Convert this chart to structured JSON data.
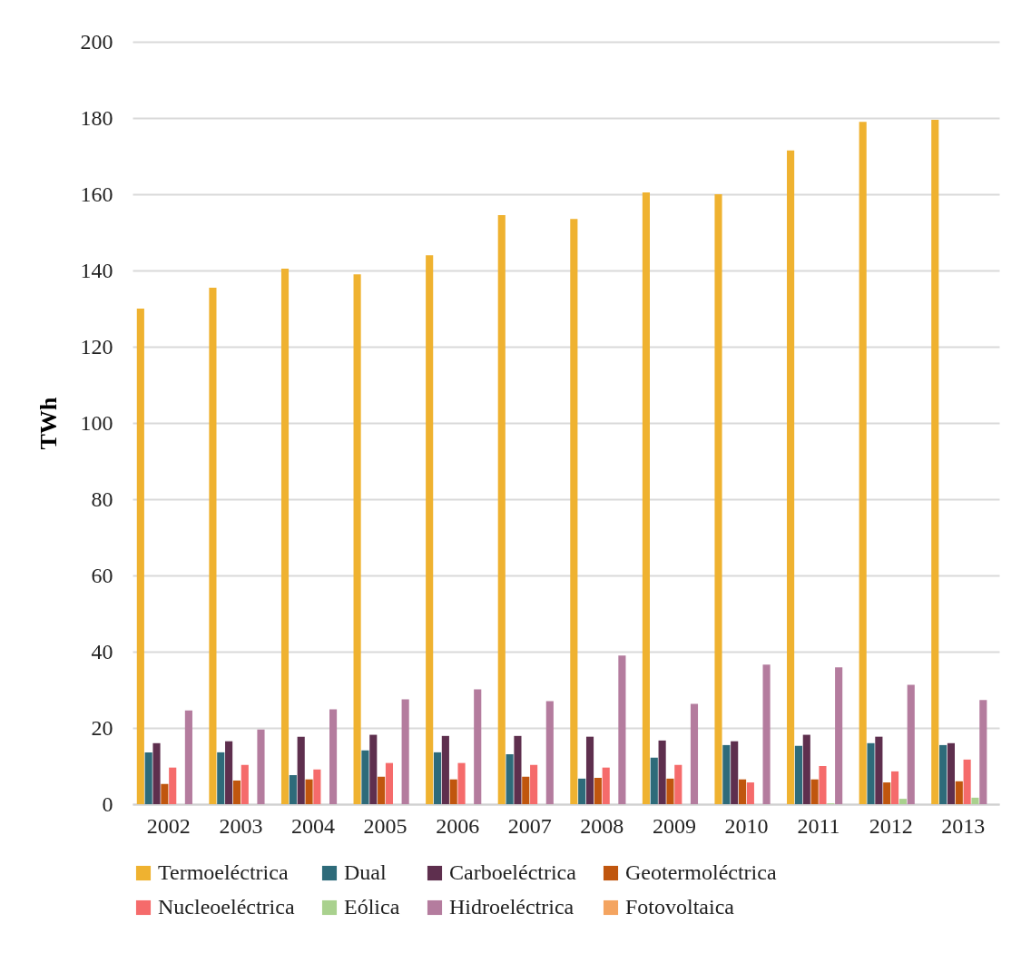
{
  "chart_data": {
    "type": "bar",
    "ylabel": "TWh",
    "categories": [
      "2002",
      "2003",
      "2004",
      "2005",
      "2006",
      "2007",
      "2008",
      "2009",
      "2010",
      "2011",
      "2012",
      "2013"
    ],
    "series": [
      {
        "name": "Termoeléctrica",
        "color": "#efb230",
        "values": [
          130,
          135.5,
          140.5,
          139,
          144,
          154.5,
          153.5,
          160.5,
          160,
          171.5,
          179,
          179.5
        ]
      },
      {
        "name": "Dual",
        "color": "#2e6b7a",
        "values": [
          13.6,
          13.6,
          7.6,
          14.1,
          13.6,
          13.1,
          6.7,
          12.2,
          15.5,
          15.3,
          16,
          15.5
        ]
      },
      {
        "name": "Carboeléctrica",
        "color": "#5e2f4e",
        "values": [
          16,
          16.5,
          17.7,
          18.2,
          17.9,
          17.9,
          17.7,
          16.7,
          16.5,
          18.2,
          17.7,
          16
        ]
      },
      {
        "name": "Geotermoléctrica",
        "color": "#c0560e",
        "values": [
          5.3,
          6.2,
          6.5,
          7.2,
          6.5,
          7.2,
          6.9,
          6.7,
          6.5,
          6.5,
          5.7,
          6
        ]
      },
      {
        "name": "Nucleoeléctrica",
        "color": "#f56b6b",
        "values": [
          9.6,
          10.3,
          9.1,
          10.8,
          10.8,
          10.3,
          9.6,
          10.3,
          5.7,
          10,
          8.6,
          11.7
        ]
      },
      {
        "name": "Eólica",
        "color": "#a9d18e",
        "values": [
          0,
          0,
          0,
          0,
          0,
          0,
          0,
          0,
          0,
          0.2,
          1.4,
          1.7
        ]
      },
      {
        "name": "Hidroeléctrica",
        "color": "#b47c9e",
        "values": [
          24.6,
          19.6,
          24.9,
          27.5,
          30.1,
          27,
          39,
          26.3,
          36.6,
          35.9,
          31.3,
          27.3
        ]
      },
      {
        "name": "Fotovoltaica",
        "color": "#f4a460",
        "values": [
          0,
          0,
          0,
          0,
          0,
          0,
          0,
          0,
          0,
          0,
          0,
          0
        ]
      }
    ],
    "ylim": [
      0,
      200
    ],
    "yticks": [
      0,
      20,
      40,
      60,
      80,
      100,
      120,
      140,
      160,
      180,
      200
    ],
    "grid": "y",
    "legend": "bottom"
  }
}
